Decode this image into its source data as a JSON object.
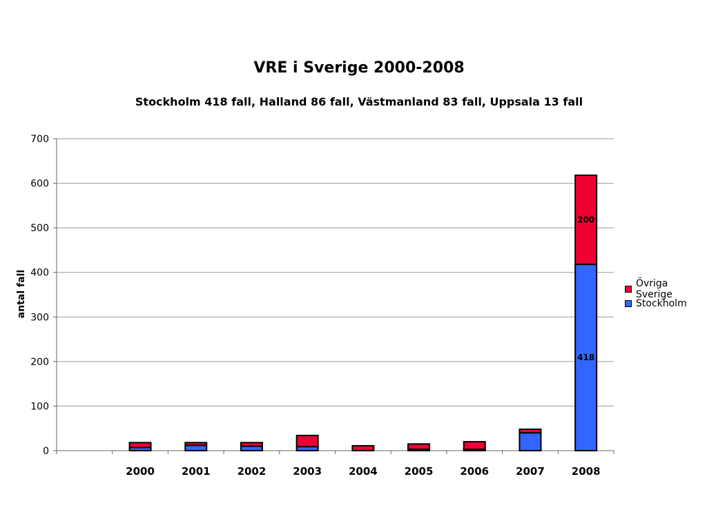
{
  "chart_data": {
    "type": "bar",
    "stacked": true,
    "title": "VRE i Sverige 2000-2008",
    "subtitle": "Stockholm 418 fall, Halland 86 fall, Västmanland 83 fall, Uppsala 13 fall",
    "xlabel": "",
    "ylabel": "antal fall",
    "ylim": [
      0,
      700
    ],
    "yticks": [
      0,
      100,
      200,
      300,
      400,
      500,
      600,
      700
    ],
    "grid": true,
    "legend_position": "right",
    "categories": [
      "2000",
      "2001",
      "2002",
      "2003",
      "2004",
      "2005",
      "2006",
      "2007",
      "2008"
    ],
    "series": [
      {
        "name": "Stockholm",
        "color": "#3366ff",
        "values": [
          7,
          12,
          10,
          9,
          0,
          3,
          3,
          40,
          418
        ]
      },
      {
        "name": "Övriga Sverige",
        "color": "#ee0033",
        "values": [
          11,
          6,
          8,
          25,
          11,
          12,
          17,
          8,
          200
        ]
      }
    ],
    "data_labels": [
      {
        "series": "Stockholm",
        "category": "2008",
        "text": "418"
      },
      {
        "series": "Övriga Sverige",
        "category": "2008",
        "text": "200"
      }
    ]
  }
}
